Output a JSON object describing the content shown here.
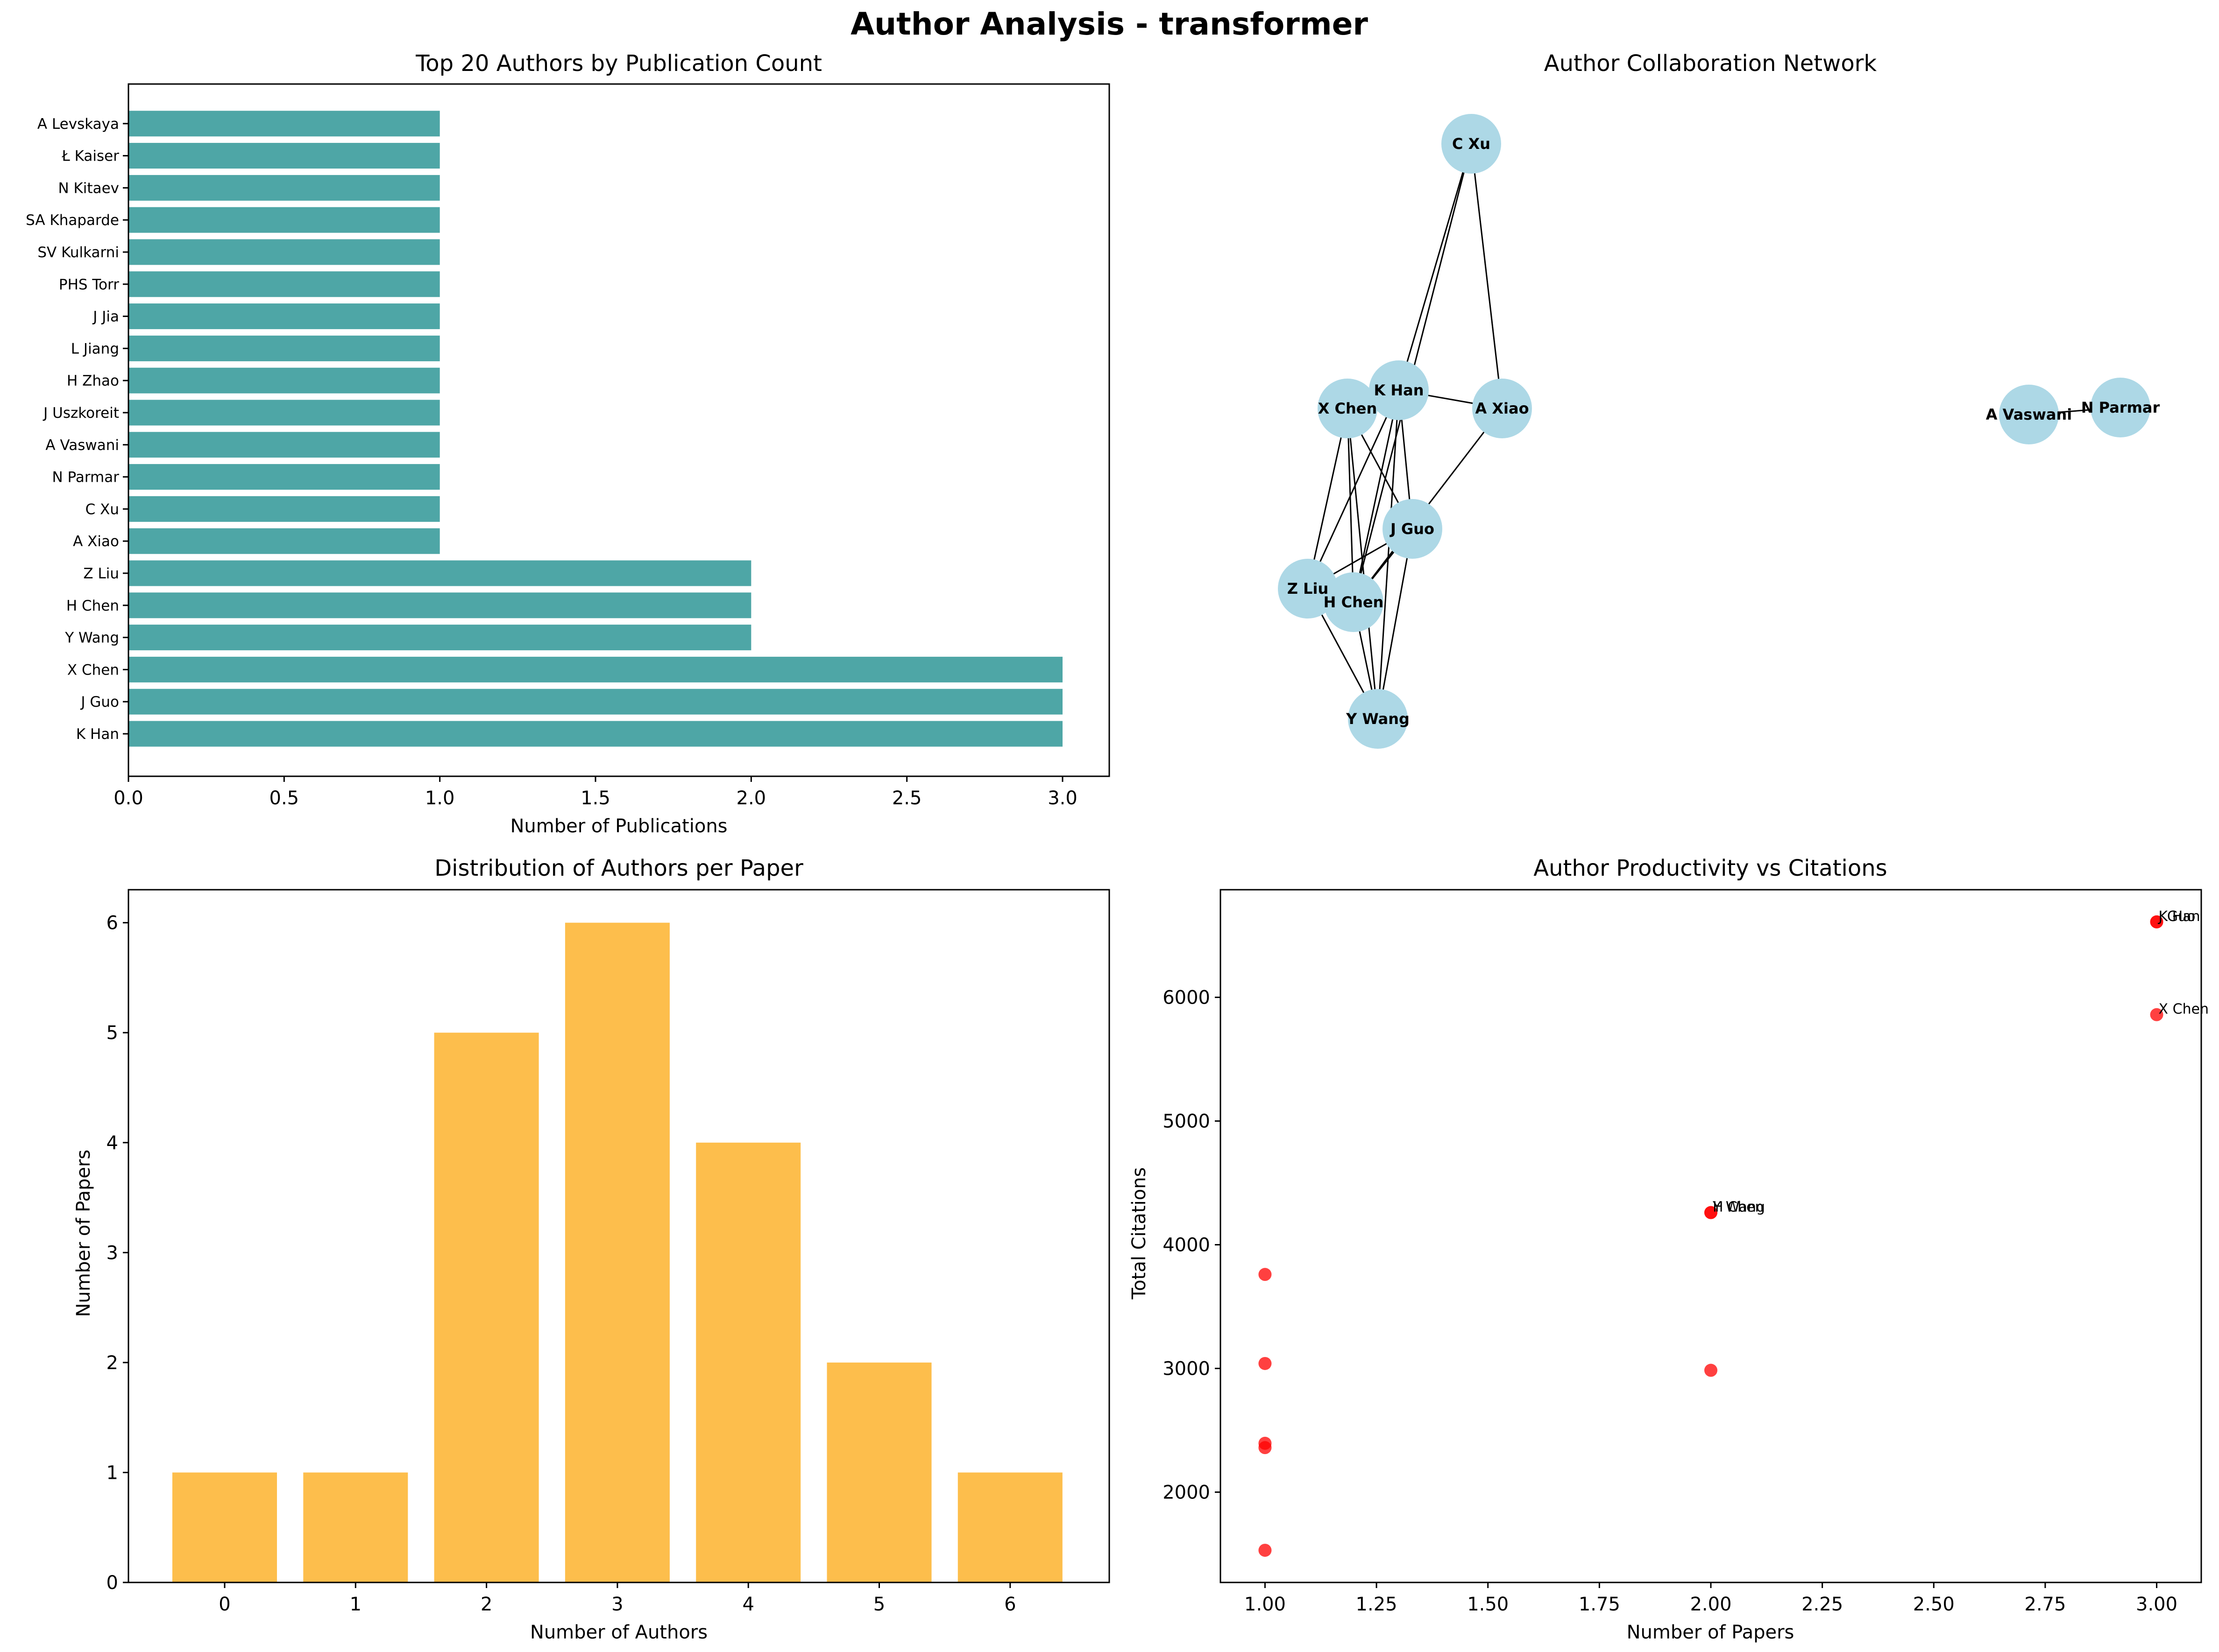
{
  "title": "Author Analysis - transformer",
  "colors": {
    "bar_authors": "#4ea6a6",
    "bar_dist": "#fdbe4c",
    "node": "#add8e6",
    "scatter": "#ff0000",
    "edge": "#000000"
  },
  "chart_data": [
    {
      "type": "bar",
      "orientation": "horizontal",
      "title": "Top 20 Authors by Publication Count",
      "xlabel": "Number of Publications",
      "ylabel": "",
      "xlim": [
        0,
        3.15
      ],
      "xticks": [
        "0.0",
        "0.5",
        "1.0",
        "1.5",
        "2.0",
        "2.5",
        "3.0"
      ],
      "categories": [
        "K Han",
        "J Guo",
        "X Chen",
        "Y Wang",
        "H Chen",
        "Z Liu",
        "A Xiao",
        "C Xu",
        "N Parmar",
        "A Vaswani",
        "J Uszkoreit",
        "H Zhao",
        "L Jiang",
        "J Jia",
        "PHS Torr",
        "SV Kulkarni",
        "SA Khaparde",
        "N Kitaev",
        "Ł Kaiser",
        "A Levskaya"
      ],
      "values": [
        3,
        3,
        3,
        2,
        2,
        2,
        1,
        1,
        1,
        1,
        1,
        1,
        1,
        1,
        1,
        1,
        1,
        1,
        1,
        1
      ],
      "grid": false
    },
    {
      "type": "network",
      "title": "Author Collaboration Network",
      "nodes": [
        "C Xu",
        "K Han",
        "X Chen",
        "A Xiao",
        "J Guo",
        "Z Liu",
        "H Chen",
        "Y Wang",
        "A Vaswani",
        "N Parmar"
      ],
      "edges": [
        [
          "C Xu",
          "K Han"
        ],
        [
          "C Xu",
          "A Xiao"
        ],
        [
          "C Xu",
          "H Chen"
        ],
        [
          "K Han",
          "A Xiao"
        ],
        [
          "K Han",
          "X Chen"
        ],
        [
          "K Han",
          "J Guo"
        ],
        [
          "K Han",
          "Z Liu"
        ],
        [
          "K Han",
          "H Chen"
        ],
        [
          "K Han",
          "Y Wang"
        ],
        [
          "X Chen",
          "J Guo"
        ],
        [
          "X Chen",
          "Z Liu"
        ],
        [
          "X Chen",
          "H Chen"
        ],
        [
          "X Chen",
          "Y Wang"
        ],
        [
          "A Xiao",
          "H Chen"
        ],
        [
          "J Guo",
          "Z Liu"
        ],
        [
          "J Guo",
          "H Chen"
        ],
        [
          "J Guo",
          "Y Wang"
        ],
        [
          "Z Liu",
          "Y Wang"
        ],
        [
          "H Chen",
          "Y Wang"
        ],
        [
          "A Vaswani",
          "N Parmar"
        ]
      ]
    },
    {
      "type": "bar",
      "title": "Distribution of Authors per Paper",
      "xlabel": "Number of Authors",
      "ylabel": "Number of Papers",
      "categories": [
        "0",
        "1",
        "2",
        "3",
        "4",
        "5",
        "6"
      ],
      "values": [
        1,
        1,
        5,
        6,
        4,
        2,
        1
      ],
      "ylim": [
        0,
        6.3
      ],
      "yticks": [
        "0",
        "1",
        "2",
        "3",
        "4",
        "5",
        "6"
      ],
      "grid": false
    },
    {
      "type": "scatter",
      "title": "Author Productivity vs Citations",
      "xlabel": "Number of Papers",
      "ylabel": "Total Citations",
      "xlim": [
        0.9,
        3.1
      ],
      "ylim": [
        1270,
        6870
      ],
      "xticks": [
        "1.00",
        "1.25",
        "1.50",
        "1.75",
        "2.00",
        "2.25",
        "2.50",
        "2.75",
        "3.00"
      ],
      "yticks": [
        "2000",
        "3000",
        "4000",
        "5000",
        "6000"
      ],
      "points": [
        {
          "x": 3,
          "y": 6610,
          "label": "K Han"
        },
        {
          "x": 3,
          "y": 6610,
          "label": "J Guo"
        },
        {
          "x": 3,
          "y": 5860,
          "label": "X Chen"
        },
        {
          "x": 2,
          "y": 4260,
          "label": "Y Wang"
        },
        {
          "x": 2,
          "y": 4260,
          "label": "H Chen"
        },
        {
          "x": 2,
          "y": 2985,
          "label": ""
        },
        {
          "x": 1,
          "y": 3760,
          "label": ""
        },
        {
          "x": 1,
          "y": 3040,
          "label": ""
        },
        {
          "x": 1,
          "y": 2395,
          "label": ""
        },
        {
          "x": 1,
          "y": 2360,
          "label": ""
        },
        {
          "x": 1,
          "y": 1530,
          "label": ""
        }
      ],
      "grid": false
    }
  ]
}
